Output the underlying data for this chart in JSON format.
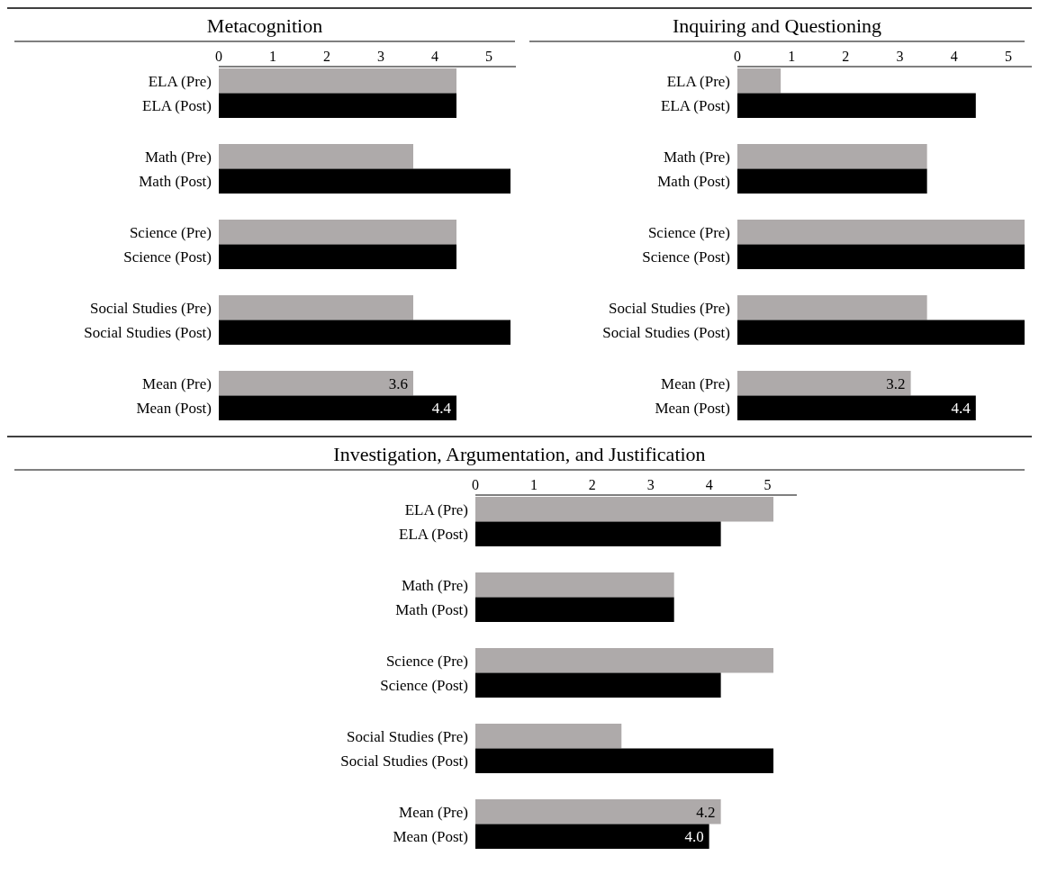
{
  "chart_data": [
    {
      "type": "bar",
      "orientation": "horizontal",
      "title": "Metacognition",
      "categories": [
        "ELA (Pre)",
        "ELA (Post)",
        "Math (Pre)",
        "Math (Post)",
        "Science (Pre)",
        "Science (Post)",
        "Social Studies (Pre)",
        "Social Studies (Post)",
        "Mean (Pre)",
        "Mean (Post)"
      ],
      "values": [
        4.4,
        4.4,
        3.6,
        5.4,
        4.4,
        4.4,
        3.6,
        5.4,
        3.6,
        4.4
      ],
      "colors": [
        "#aeaaaa",
        "#000000",
        "#aeaaaa",
        "#000000",
        "#aeaaaa",
        "#000000",
        "#aeaaaa",
        "#000000",
        "#aeaaaa",
        "#000000"
      ],
      "value_labels": [
        null,
        null,
        null,
        null,
        null,
        null,
        null,
        null,
        "3.6",
        "4.4"
      ],
      "xlim": [
        0,
        5.5
      ],
      "xticks": [
        0,
        1,
        2,
        3,
        4,
        5
      ]
    },
    {
      "type": "bar",
      "orientation": "horizontal",
      "title": "Inquiring and Questioning",
      "categories": [
        "ELA (Pre)",
        "ELA (Post)",
        "Math (Pre)",
        "Math (Post)",
        "Science (Pre)",
        "Science (Post)",
        "Social Studies (Pre)",
        "Social Studies (Post)",
        "Mean (Pre)",
        "Mean (Post)"
      ],
      "values": [
        0.8,
        4.4,
        3.5,
        3.5,
        5.3,
        5.3,
        3.5,
        5.3,
        3.2,
        4.4
      ],
      "colors": [
        "#aeaaaa",
        "#000000",
        "#aeaaaa",
        "#000000",
        "#aeaaaa",
        "#000000",
        "#aeaaaa",
        "#000000",
        "#aeaaaa",
        "#000000"
      ],
      "value_labels": [
        null,
        null,
        null,
        null,
        null,
        null,
        null,
        null,
        "3.2",
        "4.4"
      ],
      "xlim": [
        0,
        5.5
      ],
      "xticks": [
        0,
        1,
        2,
        3,
        4,
        5
      ]
    },
    {
      "type": "bar",
      "orientation": "horizontal",
      "title": "Investigation, Argumentation, and Justification",
      "categories": [
        "ELA (Pre)",
        "ELA (Post)",
        "Math (Pre)",
        "Math (Post)",
        "Science (Pre)",
        "Science (Post)",
        "Social Studies (Pre)",
        "Social Studies (Post)",
        "Mean (Pre)",
        "Mean (Post)"
      ],
      "values": [
        5.1,
        4.2,
        3.4,
        3.4,
        5.1,
        4.2,
        2.5,
        5.1,
        4.2,
        4.0
      ],
      "colors": [
        "#aeaaaa",
        "#000000",
        "#aeaaaa",
        "#000000",
        "#aeaaaa",
        "#000000",
        "#aeaaaa",
        "#000000",
        "#aeaaaa",
        "#000000"
      ],
      "value_labels": [
        null,
        null,
        null,
        null,
        null,
        null,
        null,
        null,
        "4.2",
        "4.0"
      ],
      "xlim": [
        0,
        5.5
      ],
      "xticks": [
        0,
        1,
        2,
        3,
        4,
        5
      ]
    }
  ]
}
